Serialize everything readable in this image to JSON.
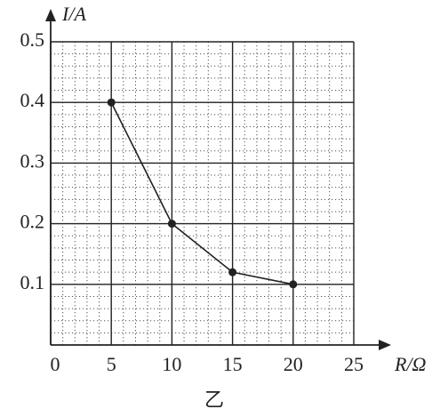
{
  "chart_data": {
    "type": "line",
    "x_label": "R/Ω",
    "y_label": "I/A",
    "caption": "乙",
    "x": [
      5,
      10,
      15,
      20
    ],
    "series": [
      {
        "values": [
          0.4,
          0.2,
          0.12,
          0.1
        ],
        "color": "#222"
      }
    ],
    "xlim": [
      0,
      25
    ],
    "xticks": [
      0,
      5,
      10,
      15,
      20,
      25
    ],
    "ylim": [
      0,
      0.5
    ],
    "yticks": [
      0.1,
      0.2,
      0.3,
      0.4,
      0.5
    ],
    "grid": true
  }
}
